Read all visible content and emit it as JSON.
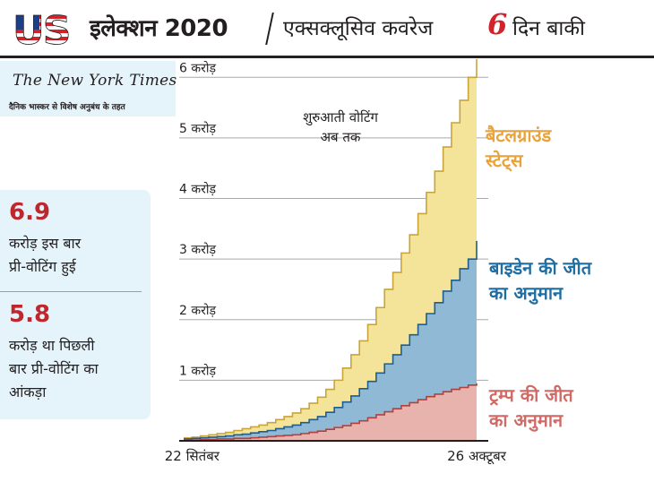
{
  "header": {
    "logo_text": "US",
    "title": "इलेक्शन 2020",
    "subtitle": "एक्सक्लूसिव कवरेज",
    "days_number": "6",
    "days_label": "दिन बाकी"
  },
  "source": {
    "logo": "The New York Times",
    "credit": "दैनिक भास्कर से विशेष अनुबंध के तहत"
  },
  "stats": [
    {
      "number": "6.9",
      "text_line1": "करोड़ इस बार",
      "text_line2": "प्री-वोटिंग हुई"
    },
    {
      "number": "5.8",
      "text_line1": "करोड़ था पिछली",
      "text_line2": "बार प्री-वोटिंग का",
      "text_line3": "आंकड़ा"
    }
  ],
  "colors": {
    "battleground": "#f3e49a",
    "biden": "#8fb9d4",
    "trump": "#e8b3ad",
    "battleground_label": "#e8a33d",
    "biden_label": "#1f6ea3",
    "trump_label": "#d06a66",
    "accent_red": "#d2232a"
  },
  "chart_data": {
    "type": "area",
    "title": "शुरुआती वोटिंग अब तक",
    "title_line1": "शुरुआती वोटिंग",
    "title_line2": "अब तक",
    "xlabel": "",
    "ylabel": "",
    "ylim": [
      0,
      6.3
    ],
    "y_ticks": [
      1,
      2,
      3,
      4,
      5,
      6
    ],
    "y_tick_labels": [
      "1 करोड़",
      "2 करोड़",
      "3 करोड़",
      "4 करोड़",
      "5 करोड़",
      "6 करोड़"
    ],
    "x_tick_labels": [
      "22 सितंबर",
      "26 अक्टूबर"
    ],
    "x_tick_days": [
      1,
      35
    ],
    "x_range": [
      0,
      35
    ],
    "x": [
      0,
      1,
      2,
      3,
      4,
      5,
      6,
      7,
      8,
      9,
      10,
      11,
      12,
      13,
      14,
      15,
      16,
      17,
      18,
      19,
      20,
      21,
      22,
      23,
      24,
      25,
      26,
      27,
      28,
      29,
      30,
      31,
      32,
      33,
      34,
      35
    ],
    "series": [
      {
        "name": "बैटलग्राउंड स्टेट्स",
        "name_line1": "बैटलग्राउंड",
        "name_line2": "स्टेट्स",
        "values": [
          0.05,
          0.06,
          0.08,
          0.1,
          0.12,
          0.14,
          0.17,
          0.2,
          0.23,
          0.26,
          0.3,
          0.35,
          0.4,
          0.46,
          0.53,
          0.62,
          0.72,
          0.85,
          1.0,
          1.2,
          1.42,
          1.65,
          1.92,
          2.2,
          2.5,
          2.78,
          3.1,
          3.4,
          3.75,
          4.1,
          4.45,
          4.85,
          5.25,
          5.62,
          6.0,
          6.3
        ]
      },
      {
        "name": "बाइडेन की जीत का अनुमान",
        "name_line1": "बाइडेन की जीत",
        "name_line2": "का अनुमान",
        "values": [
          0.03,
          0.04,
          0.05,
          0.06,
          0.07,
          0.08,
          0.1,
          0.11,
          0.13,
          0.15,
          0.17,
          0.2,
          0.23,
          0.26,
          0.3,
          0.35,
          0.4,
          0.47,
          0.55,
          0.64,
          0.74,
          0.86,
          0.98,
          1.12,
          1.27,
          1.42,
          1.58,
          1.75,
          1.92,
          2.1,
          2.28,
          2.47,
          2.65,
          2.84,
          3.0,
          3.3
        ]
      },
      {
        "name": "ट्रम्प की जीत का अनुमान",
        "name_line1": "ट्रम्प की जीत",
        "name_line2": "का अनुमान",
        "values": [
          0.01,
          0.01,
          0.02,
          0.02,
          0.03,
          0.03,
          0.04,
          0.04,
          0.05,
          0.06,
          0.07,
          0.08,
          0.09,
          0.1,
          0.12,
          0.14,
          0.16,
          0.19,
          0.22,
          0.25,
          0.29,
          0.33,
          0.38,
          0.43,
          0.48,
          0.53,
          0.58,
          0.63,
          0.68,
          0.73,
          0.77,
          0.81,
          0.85,
          0.88,
          0.92,
          0.95
        ]
      }
    ]
  }
}
